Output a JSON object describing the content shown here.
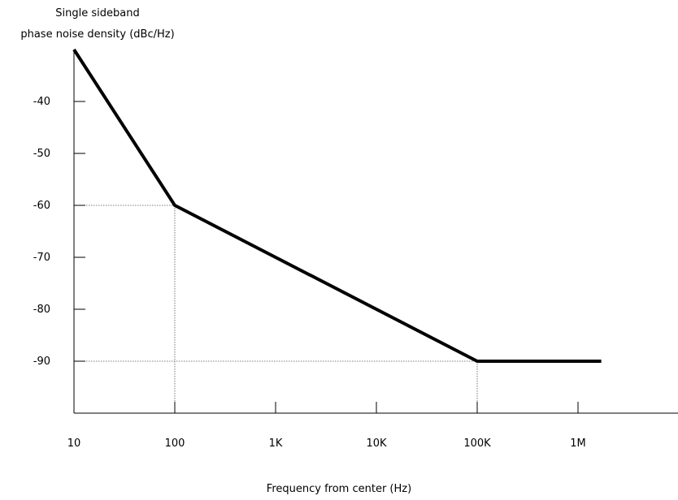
{
  "chart_data": {
    "type": "line",
    "ylabel_line1": "Single sideband",
    "ylabel_line2": "phase noise density (dBc/Hz)",
    "xlabel": "Frequency from center (Hz)",
    "xscale": "log",
    "x_ticks": [
      10,
      100,
      1000,
      10000,
      100000,
      1000000
    ],
    "x_tick_labels": [
      "10",
      "100",
      "1K",
      "10K",
      "100K",
      "1M"
    ],
    "y_ticks": [
      -40,
      -50,
      -60,
      -70,
      -80,
      -90
    ],
    "y_tick_labels": [
      "-40",
      "-50",
      "-60",
      "-70",
      "-80",
      "-90"
    ],
    "xlim": [
      10,
      10000000
    ],
    "ylim": [
      -100,
      -30
    ],
    "series": [
      {
        "x": [
          10,
          100,
          100000,
          1700000
        ],
        "y": [
          -30,
          -60,
          -90,
          -90
        ]
      }
    ],
    "reference_lines": [
      {
        "x": 100,
        "y": -60
      },
      {
        "x": 100000,
        "y": -90
      }
    ],
    "grid": false,
    "line_color": "#000000"
  }
}
